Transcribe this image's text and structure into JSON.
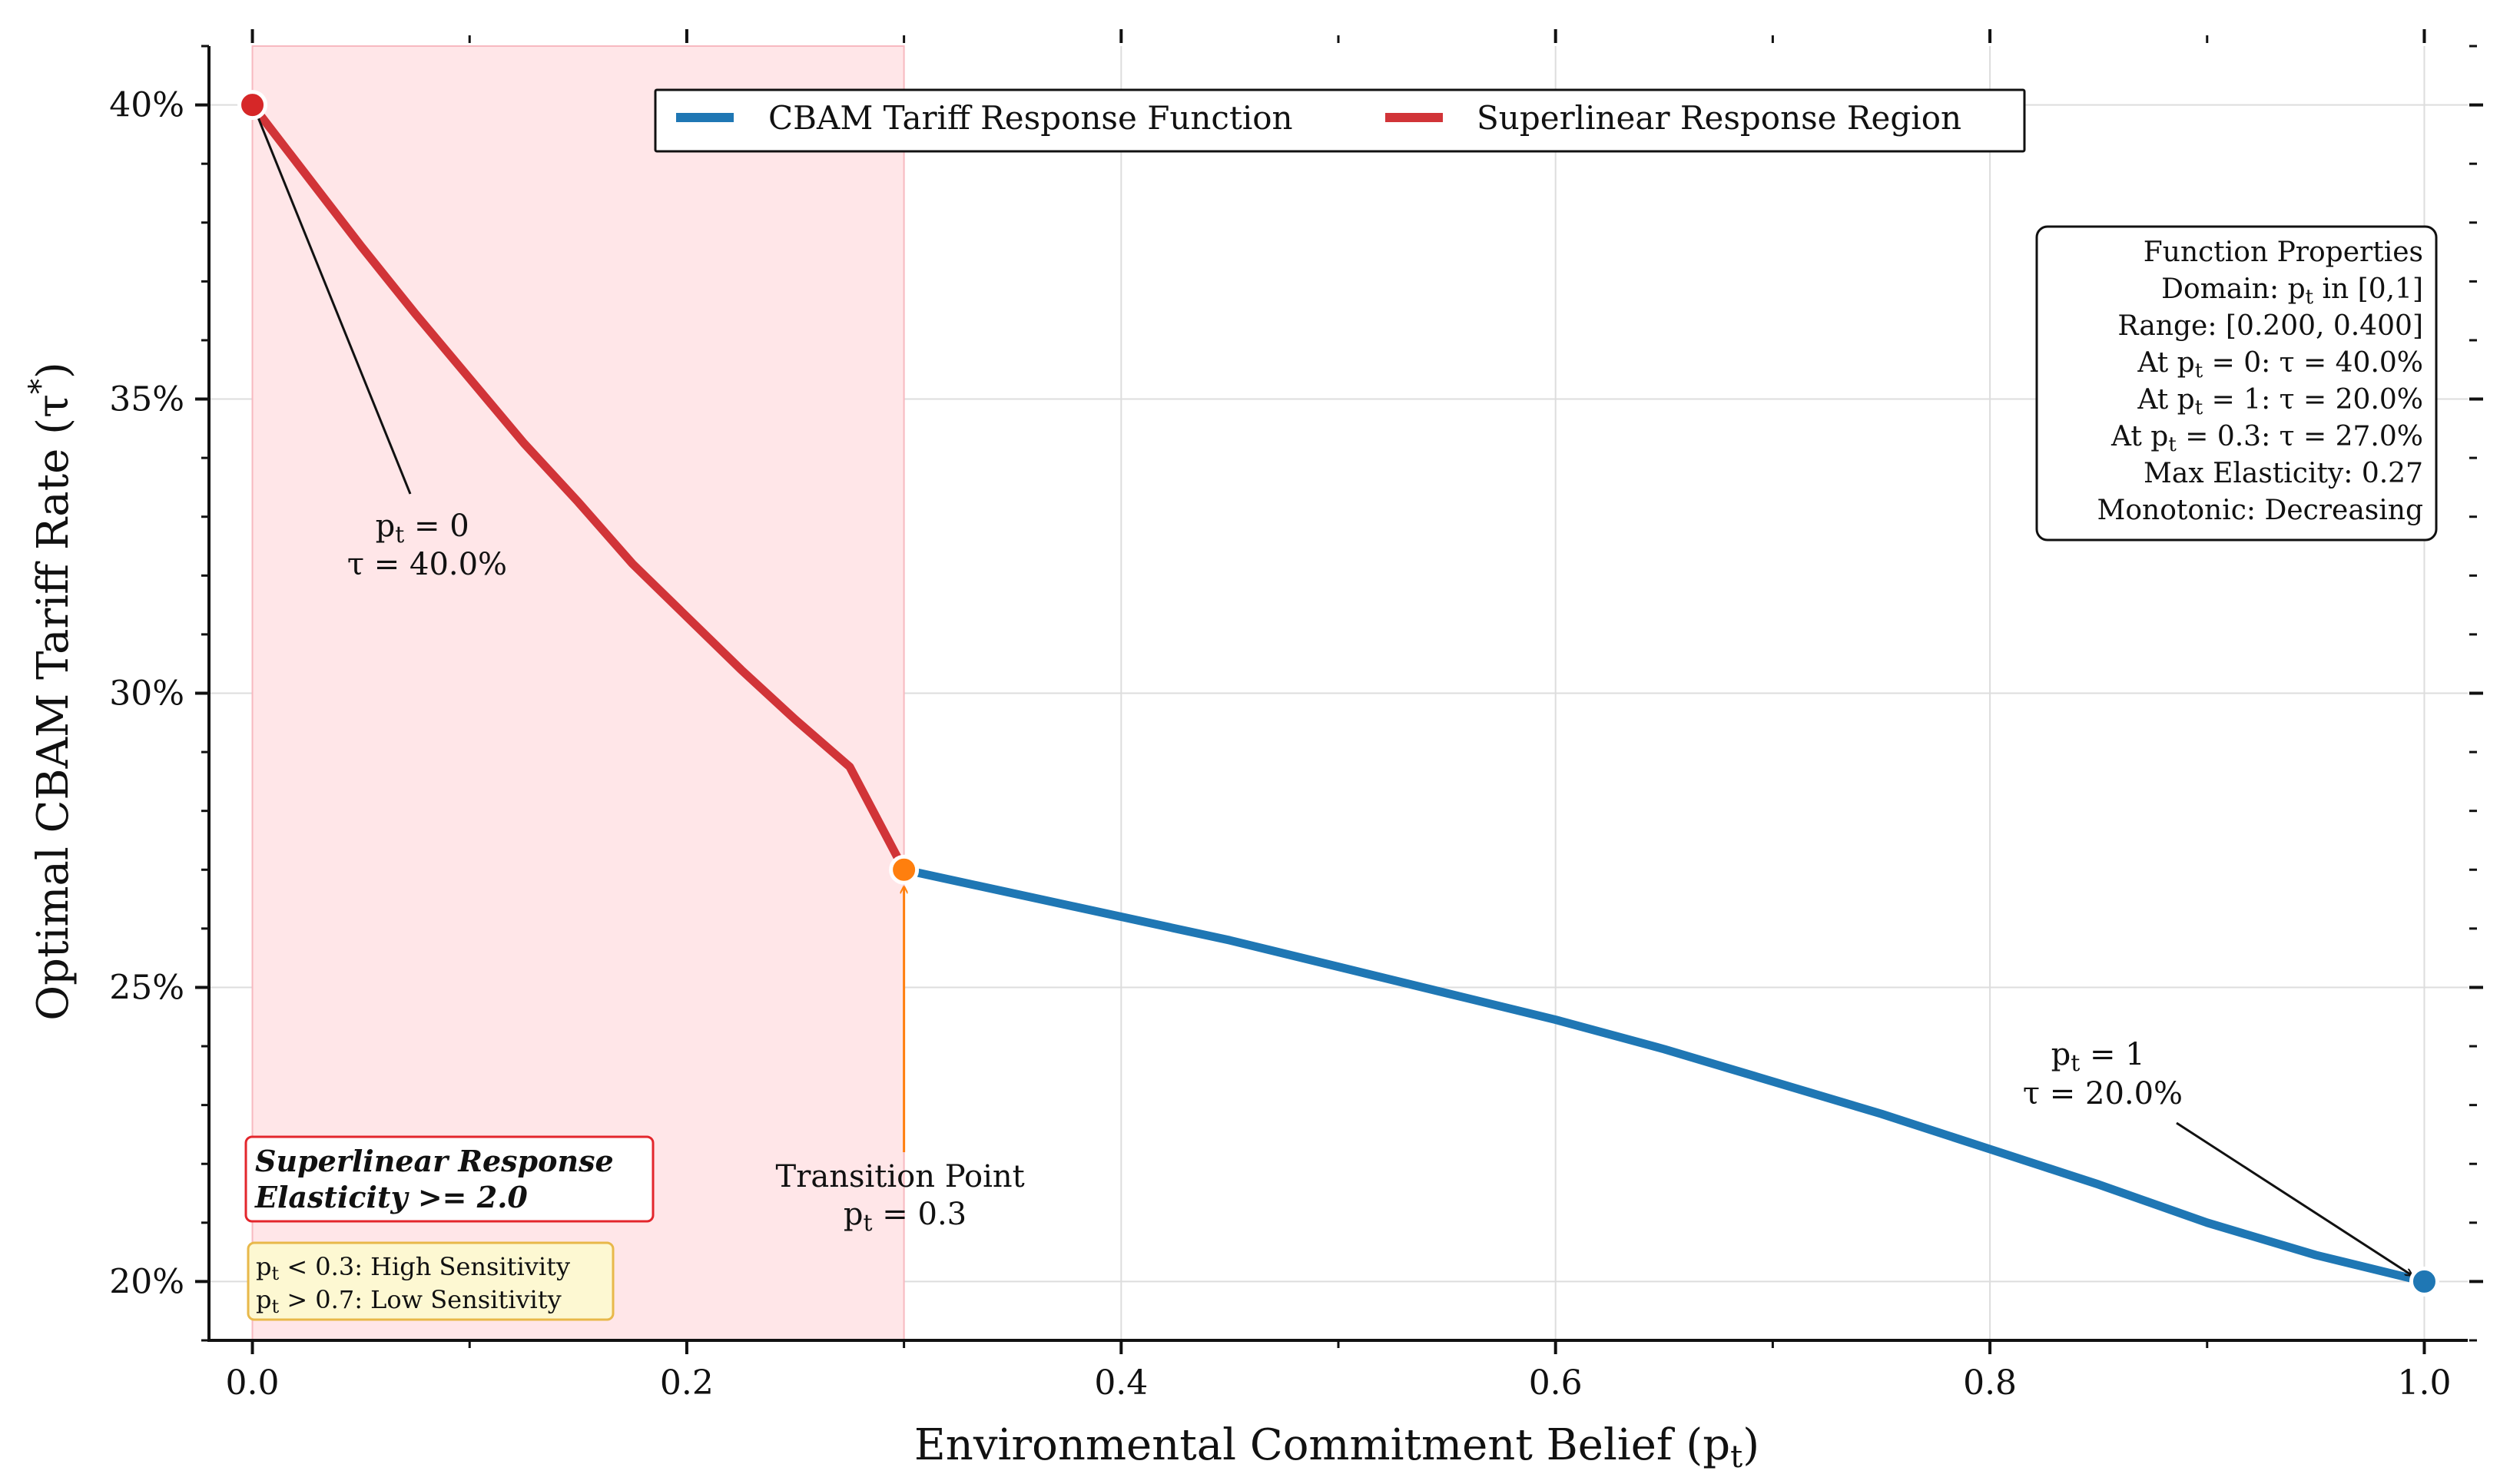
{
  "chart_data": {
    "type": "line",
    "xlabel": "Environmental Commitment Belief (p_t)",
    "ylabel": "Optimal CBAM Tariff Rate (τ*)",
    "xlim": [
      -0.02,
      1.02
    ],
    "ylim": [
      19.0,
      41.0
    ],
    "x_ticks": [
      "0.0",
      "0.2",
      "0.4",
      "0.6",
      "0.8",
      "1.0"
    ],
    "y_ticks": [
      "20%",
      "25%",
      "30%",
      "35%",
      "40%"
    ],
    "series": [
      {
        "name": "CBAM Tariff Response Function",
        "color": "#1f77b4",
        "x": [
          0.3,
          0.35,
          0.4,
          0.45,
          0.5,
          0.55,
          0.6,
          0.65,
          0.7,
          0.75,
          0.8,
          0.85,
          0.9,
          0.95,
          1.0
        ],
        "y": [
          27.0,
          26.6,
          26.2,
          25.8,
          25.35,
          24.9,
          24.45,
          23.95,
          23.4,
          22.85,
          22.25,
          21.65,
          21.0,
          20.45,
          20.0
        ]
      },
      {
        "name": "Superlinear Response Region",
        "color": "#d13438",
        "x": [
          0.0,
          0.025,
          0.05,
          0.075,
          0.1,
          0.125,
          0.15,
          0.175,
          0.2,
          0.225,
          0.25,
          0.275,
          0.3
        ],
        "y": [
          40.0,
          38.8,
          37.6,
          36.45,
          35.35,
          34.25,
          33.25,
          32.2,
          31.3,
          30.4,
          29.55,
          28.75,
          27.0
        ]
      }
    ],
    "points": [
      {
        "name": "start",
        "x": 0.0,
        "y": 40.0,
        "color": "#d62728"
      },
      {
        "name": "transition",
        "x": 0.3,
        "y": 27.0,
        "color": "#ff7f0e"
      },
      {
        "name": "end",
        "x": 1.0,
        "y": 20.0,
        "color": "#1f77b4"
      }
    ],
    "shaded_region": {
      "x_from": 0.0,
      "x_to": 0.3,
      "color": "#ffe6e8"
    },
    "grid": true,
    "legend": {
      "position": "top-center",
      "entries": [
        "CBAM Tariff Response Function",
        "Superlinear Response Region"
      ]
    },
    "annotations": {
      "start": {
        "line1": "p_t = 0",
        "line2": "τ = 40.0%"
      },
      "end": {
        "line1": "p_t = 1",
        "line2": "τ = 20.0%"
      },
      "transition": {
        "line1": "Transition Point",
        "line2": "p_t = 0.3"
      }
    },
    "properties_box": {
      "lines": [
        "Function Properties",
        "Domain: p_t in [0,1]",
        "Range: [0.200, 0.400]",
        "At p_t = 0: τ = 40.0%",
        "At p_t = 1: τ = 20.0%",
        "At p_t = 0.3: τ = 27.0%",
        "Max Elasticity: 0.27",
        "Monotonic: Decreasing"
      ]
    },
    "superlinear_box": {
      "line1": "Superlinear Response",
      "line2": "Elasticity >= 2.0"
    },
    "sensitivity_box": {
      "line1": "p_t < 0.3: High Sensitivity",
      "line2": "p_t > 0.7: Low Sensitivity"
    }
  }
}
